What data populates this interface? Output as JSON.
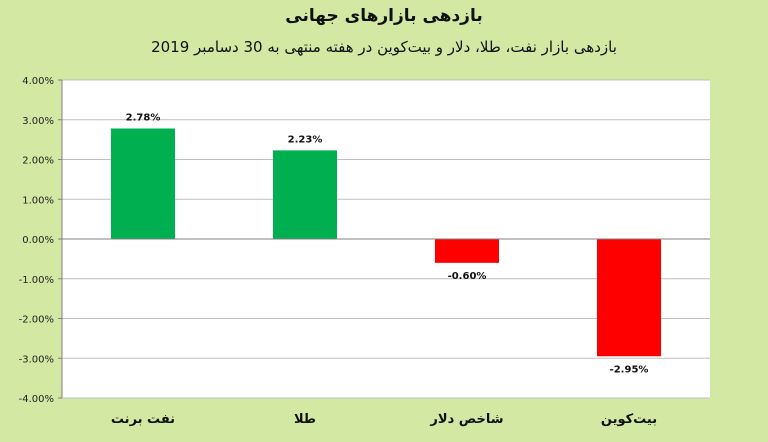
{
  "chart_data": {
    "type": "bar",
    "title": "بازدهی بازارهای جهانی",
    "subtitle": "بازدهی بازار نفت، طلا، دلار و بیت‌کوین در هفته منتهی به 30 دسامبر 2019",
    "categories": [
      "نفت برنت",
      "طلا",
      "شاخص دلار",
      "بیت‌کوین"
    ],
    "values": [
      2.78,
      2.23,
      -0.6,
      -2.95
    ],
    "value_labels": [
      "2.78%",
      "2.23%",
      "-0.60%",
      "-2.95%"
    ],
    "ylim": [
      -4,
      4
    ],
    "yticks": [
      4,
      3,
      2,
      1,
      0,
      -1,
      -2,
      -3,
      -4
    ],
    "ytick_labels": [
      "4.00%",
      "3.00%",
      "2.00%",
      "1.00%",
      "0.00%",
      "-1.00%",
      "-2.00%",
      "-3.00%",
      "-4.00%"
    ],
    "grid": true,
    "legend": "none",
    "colors": {
      "positive": "#00b050",
      "negative": "#ff0000",
      "background": "#d3e9a3",
      "plot": "#ffffff"
    }
  }
}
